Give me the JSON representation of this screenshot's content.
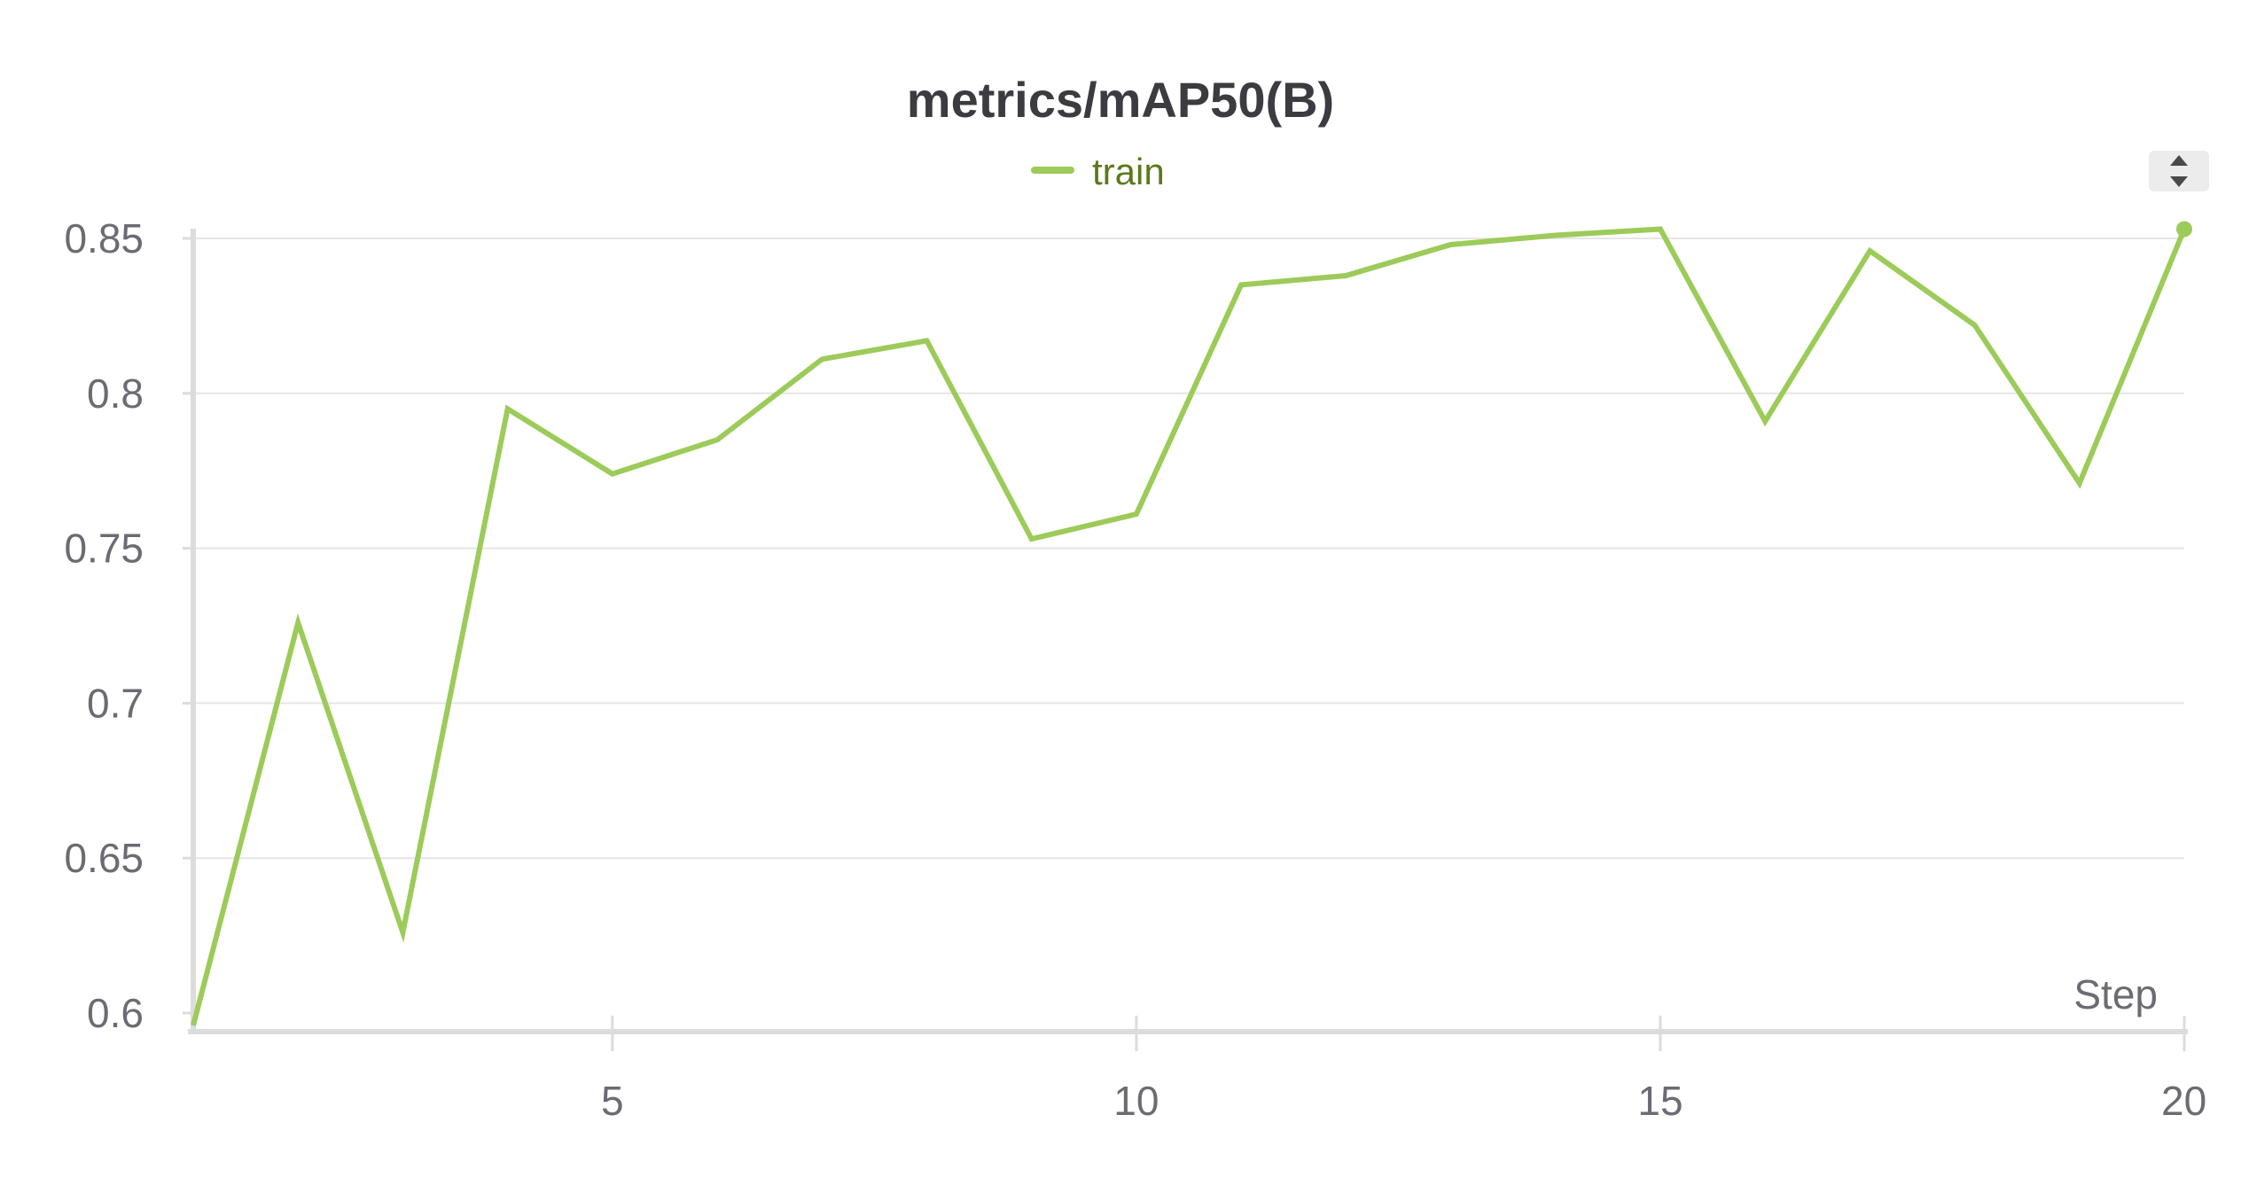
{
  "chart_data": {
    "type": "line",
    "title": "metrics/mAP50(B)",
    "xlabel": "Step",
    "ylabel": "",
    "xlim": [
      1,
      20
    ],
    "ylim": [
      0.6,
      0.85
    ],
    "x_ticks": [
      5,
      10,
      15,
      20
    ],
    "y_ticks": [
      0.6,
      0.65,
      0.7,
      0.75,
      0.8,
      0.85
    ],
    "y_tick_labels": [
      "0.6",
      "0.65",
      "0.7",
      "0.75",
      "0.8",
      "0.85"
    ],
    "x_tick_labels": [
      "5",
      "10",
      "15",
      "20"
    ],
    "grid": true,
    "legend_position": "top-center",
    "series": [
      {
        "name": "train",
        "color": "#9ccb59",
        "x": [
          1,
          2,
          3,
          4,
          5,
          6,
          7,
          8,
          9,
          10,
          11,
          12,
          13,
          14,
          15,
          16,
          17,
          18,
          19,
          20
        ],
        "values": [
          0.596,
          0.726,
          0.626,
          0.795,
          0.774,
          0.785,
          0.811,
          0.817,
          0.753,
          0.761,
          0.835,
          0.838,
          0.848,
          0.851,
          0.853,
          0.791,
          0.846,
          0.822,
          0.771,
          0.853
        ]
      }
    ]
  },
  "controls": {
    "scroll_icon": "updown-arrows-icon"
  }
}
